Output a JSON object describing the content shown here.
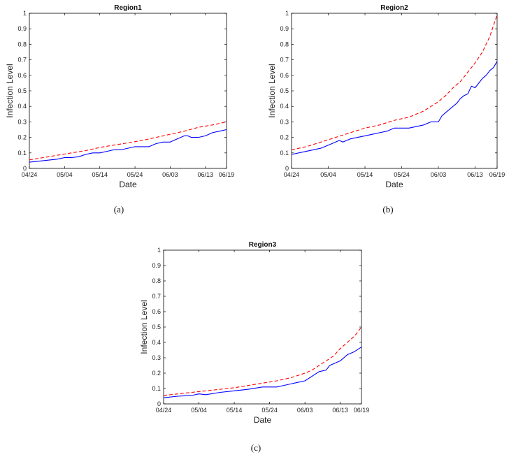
{
  "chart_data": [
    {
      "type": "line",
      "title": "Region1",
      "caption": "(a)",
      "xlabel": "Date",
      "ylabel": "Infection Level",
      "ylim": [
        0,
        1
      ],
      "yticks": [
        "0",
        "0.1",
        "0.2",
        "0.3",
        "0.4",
        "0.5",
        "0.6",
        "0.7",
        "0.8",
        "0.9",
        "1"
      ],
      "xlim": [
        0,
        56
      ],
      "xticks": [
        {
          "day": 0,
          "label": "04/24"
        },
        {
          "day": 10,
          "label": "05/04"
        },
        {
          "day": 20,
          "label": "05/14"
        },
        {
          "day": 30,
          "label": "05/24"
        },
        {
          "day": 40,
          "label": "06/03"
        },
        {
          "day": 50,
          "label": "06/13"
        },
        {
          "day": 56,
          "label": "06/19"
        }
      ],
      "series": [
        {
          "name": "solid",
          "color": "#0000ff",
          "dash": "solid",
          "x": [
            0,
            4,
            8,
            10,
            12,
            14,
            16,
            18,
            20,
            22,
            24,
            26,
            28,
            30,
            32,
            34,
            36,
            38,
            40,
            42,
            44,
            45,
            46,
            47,
            48,
            50,
            52,
            54,
            56
          ],
          "values": [
            0.04,
            0.05,
            0.06,
            0.07,
            0.07,
            0.075,
            0.09,
            0.1,
            0.1,
            0.11,
            0.12,
            0.12,
            0.13,
            0.14,
            0.14,
            0.14,
            0.16,
            0.17,
            0.17,
            0.19,
            0.21,
            0.21,
            0.2,
            0.2,
            0.2,
            0.21,
            0.23,
            0.24,
            0.25
          ]
        },
        {
          "name": "dashed",
          "color": "#ff0000",
          "dash": "dashed",
          "x": [
            0,
            4,
            8,
            12,
            16,
            20,
            24,
            28,
            32,
            36,
            40,
            44,
            48,
            52,
            56
          ],
          "values": [
            0.055,
            0.07,
            0.085,
            0.1,
            0.115,
            0.135,
            0.15,
            0.165,
            0.18,
            0.2,
            0.22,
            0.24,
            0.265,
            0.28,
            0.3
          ]
        }
      ]
    },
    {
      "type": "line",
      "title": "Region2",
      "caption": "(b)",
      "xlabel": "Date",
      "ylabel": "Infection Level",
      "ylim": [
        0,
        1
      ],
      "yticks": [
        "0",
        "0.1",
        "0.2",
        "0.3",
        "0.4",
        "0.5",
        "0.6",
        "0.7",
        "0.8",
        "0.9",
        "1"
      ],
      "xlim": [
        0,
        56
      ],
      "xticks": [
        {
          "day": 0,
          "label": "04/24"
        },
        {
          "day": 10,
          "label": "05/04"
        },
        {
          "day": 20,
          "label": "05/14"
        },
        {
          "day": 30,
          "label": "05/24"
        },
        {
          "day": 40,
          "label": "06/03"
        },
        {
          "day": 50,
          "label": "06/13"
        },
        {
          "day": 56,
          "label": "06/19"
        }
      ],
      "series": [
        {
          "name": "solid",
          "color": "#0000ff",
          "dash": "solid",
          "x": [
            0,
            4,
            8,
            10,
            12,
            13,
            14,
            16,
            18,
            20,
            22,
            24,
            26,
            28,
            30,
            32,
            34,
            36,
            38,
            40,
            41,
            42,
            43,
            44,
            45,
            46,
            47,
            48,
            49,
            50,
            51,
            52,
            53,
            54,
            55,
            56
          ],
          "values": [
            0.09,
            0.11,
            0.13,
            0.15,
            0.17,
            0.18,
            0.17,
            0.19,
            0.2,
            0.21,
            0.22,
            0.23,
            0.24,
            0.26,
            0.26,
            0.26,
            0.27,
            0.28,
            0.3,
            0.3,
            0.34,
            0.36,
            0.38,
            0.4,
            0.42,
            0.45,
            0.47,
            0.48,
            0.53,
            0.52,
            0.55,
            0.58,
            0.6,
            0.63,
            0.65,
            0.69
          ]
        },
        {
          "name": "dashed",
          "color": "#ff0000",
          "dash": "dashed",
          "x": [
            0,
            4,
            8,
            12,
            16,
            20,
            24,
            28,
            32,
            34,
            36,
            38,
            40,
            42,
            44,
            46,
            48,
            50,
            52,
            54,
            56
          ],
          "values": [
            0.12,
            0.14,
            0.17,
            0.2,
            0.23,
            0.26,
            0.28,
            0.31,
            0.33,
            0.35,
            0.37,
            0.4,
            0.43,
            0.47,
            0.52,
            0.56,
            0.62,
            0.68,
            0.75,
            0.85,
            0.99
          ]
        }
      ]
    },
    {
      "type": "line",
      "title": "Region3",
      "caption": "(c)",
      "xlabel": "Date",
      "ylabel": "Infection Level",
      "ylim": [
        0,
        1
      ],
      "yticks": [
        "0",
        "0.1",
        "0.2",
        "0.3",
        "0.4",
        "0.5",
        "0.6",
        "0.7",
        "0.8",
        "0.9",
        "1"
      ],
      "xlim": [
        0,
        56
      ],
      "xticks": [
        {
          "day": 0,
          "label": "04/24"
        },
        {
          "day": 10,
          "label": "05/04"
        },
        {
          "day": 20,
          "label": "05/14"
        },
        {
          "day": 30,
          "label": "05/24"
        },
        {
          "day": 40,
          "label": "06/03"
        },
        {
          "day": 50,
          "label": "06/13"
        },
        {
          "day": 56,
          "label": "06/19"
        }
      ],
      "series": [
        {
          "name": "solid",
          "color": "#0000ff",
          "dash": "solid",
          "x": [
            0,
            4,
            8,
            10,
            12,
            16,
            20,
            24,
            28,
            32,
            34,
            36,
            38,
            40,
            42,
            44,
            46,
            47,
            48,
            50,
            52,
            54,
            56
          ],
          "values": [
            0.04,
            0.05,
            0.055,
            0.065,
            0.06,
            0.075,
            0.085,
            0.095,
            0.11,
            0.11,
            0.12,
            0.13,
            0.14,
            0.15,
            0.18,
            0.21,
            0.22,
            0.25,
            0.26,
            0.28,
            0.32,
            0.34,
            0.37
          ]
        },
        {
          "name": "dashed",
          "color": "#ff0000",
          "dash": "dashed",
          "x": [
            0,
            4,
            8,
            12,
            16,
            20,
            24,
            28,
            32,
            36,
            40,
            42,
            44,
            46,
            48,
            50,
            52,
            54,
            56
          ],
          "values": [
            0.055,
            0.065,
            0.075,
            0.085,
            0.095,
            0.105,
            0.12,
            0.135,
            0.15,
            0.17,
            0.2,
            0.22,
            0.25,
            0.28,
            0.31,
            0.36,
            0.4,
            0.44,
            0.5
          ]
        }
      ]
    }
  ]
}
